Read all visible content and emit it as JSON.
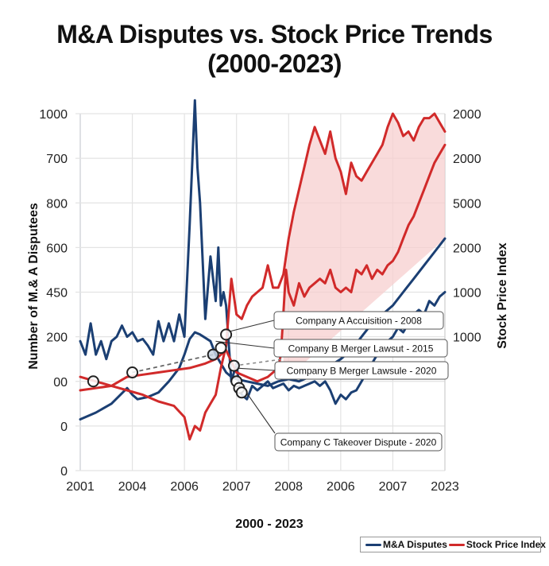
{
  "chart_data": {
    "type": "line",
    "title": "M&A Disputes vs. Stock Price Trends (2000-2023)",
    "title_lines": [
      "M&A Disputes vs. Stock Price Trends",
      "(2000-2023)"
    ],
    "xlabel": "2000 - 2023",
    "ylabel_left": "Number of M.& A Disputees",
    "ylabel_right": "Stock Price Index",
    "x_ticks": [
      "2001",
      "2004",
      "2006",
      "2007",
      "2008",
      "2006",
      "2007",
      "2023"
    ],
    "y_left_ticks": [
      "1000",
      "700",
      "800",
      "600",
      "450",
      "200",
      "00",
      "0",
      "0"
    ],
    "y_right_ticks": [
      "2000",
      "2000",
      "5000",
      "2000",
      "1000",
      "1000"
    ],
    "grid": true,
    "legend_position": "bottom-right",
    "x_range": [
      0,
      7
    ],
    "y_range": [
      0,
      8
    ],
    "fill_area": {
      "series": "Stock Price Index",
      "from_x": 3.9,
      "color": "#f5c6c6"
    },
    "series": [
      {
        "name": "M&A Disputes",
        "role": "upper",
        "color": "#1b3f73",
        "x": [
          0,
          0.1,
          0.2,
          0.3,
          0.4,
          0.5,
          0.6,
          0.7,
          0.8,
          0.9,
          1.0,
          1.1,
          1.2,
          1.3,
          1.4,
          1.5,
          1.6,
          1.7,
          1.8,
          1.9,
          2.0,
          2.1,
          2.2,
          2.25,
          2.3,
          2.4,
          2.5,
          2.6,
          2.65,
          2.7,
          2.75,
          2.8,
          2.9,
          3.0,
          3.05,
          3.1,
          3.2,
          3.3,
          3.4,
          3.5,
          3.6,
          3.7,
          3.8,
          3.9,
          4.0,
          4.1,
          4.2,
          4.3,
          4.4,
          4.5,
          4.6,
          4.7,
          4.8,
          4.9,
          5.0,
          5.1,
          5.2,
          5.3,
          5.4,
          5.5,
          5.6,
          5.7,
          5.8,
          5.9,
          6.0,
          6.1,
          6.2,
          6.3,
          6.4,
          6.5,
          6.6,
          6.7,
          6.8,
          6.9,
          7.0
        ],
        "y": [
          2.9,
          2.6,
          3.3,
          2.6,
          2.9,
          2.5,
          2.9,
          3.0,
          3.25,
          3.0,
          3.1,
          2.9,
          2.95,
          2.8,
          2.6,
          3.35,
          2.9,
          3.3,
          2.9,
          3.5,
          3.0,
          5.5,
          8.3,
          6.8,
          6.0,
          3.4,
          4.8,
          3.8,
          5.0,
          3.7,
          4.0,
          3.7,
          2.0,
          2.4,
          1.9,
          1.7,
          1.6,
          1.9,
          1.8,
          1.9,
          2.0,
          1.85,
          1.9,
          1.95,
          1.8,
          1.9,
          1.85,
          1.9,
          1.95,
          2.0,
          1.9,
          2.0,
          1.8,
          1.5,
          1.7,
          1.6,
          1.75,
          1.8,
          2.0,
          2.2,
          2.4,
          2.6,
          2.8,
          2.9,
          3.0,
          3.2,
          3.1,
          3.3,
          3.5,
          3.6,
          3.5,
          3.8,
          3.7,
          3.9,
          4.0
        ],
        "values_note": "traced from plotted line; y in gridline units (0 = bottom '0' tick, 8 = top '1000' tick)"
      },
      {
        "name": "M&A Disputes",
        "role": "lower",
        "color": "#1b3f73",
        "x": [
          0,
          0.3,
          0.6,
          0.9,
          1.0,
          1.1,
          1.3,
          1.5,
          1.7,
          1.9,
          2.0,
          2.1,
          2.2,
          2.3,
          2.5,
          2.6,
          2.7,
          2.8,
          2.9,
          3.0,
          3.2,
          3.4,
          3.6,
          3.8,
          4.0,
          4.2,
          4.4,
          4.6,
          4.8,
          5.0,
          5.2,
          5.4,
          5.6,
          5.8,
          6.0,
          6.2,
          6.4,
          6.6,
          6.8,
          7.0
        ],
        "y": [
          1.15,
          1.3,
          1.5,
          1.85,
          1.7,
          1.6,
          1.65,
          1.75,
          2.0,
          2.3,
          2.6,
          2.95,
          3.1,
          3.05,
          2.9,
          2.6,
          2.4,
          2.2,
          2.1,
          2.05,
          2.0,
          1.95,
          1.9,
          2.0,
          2.05,
          2.0,
          2.1,
          2.2,
          2.35,
          2.5,
          2.7,
          3.0,
          3.3,
          3.5,
          3.7,
          4.0,
          4.3,
          4.6,
          4.9,
          5.2
        ]
      },
      {
        "name": "Stock Price Index",
        "role": "upper",
        "color": "#d12a2a",
        "x": [
          0,
          0.3,
          0.6,
          0.9,
          1.2,
          1.5,
          1.8,
          2.1,
          2.4,
          2.6,
          2.8,
          3.0,
          3.2,
          3.4,
          3.6,
          3.8,
          3.85,
          3.95,
          4.0,
          4.1,
          4.2,
          4.3,
          4.4,
          4.5,
          4.6,
          4.7,
          4.8,
          4.9,
          5.0,
          5.1,
          5.2,
          5.3,
          5.4,
          5.5,
          5.6,
          5.7,
          5.8,
          5.9,
          6.0,
          6.1,
          6.2,
          6.3,
          6.4,
          6.5,
          6.6,
          6.7,
          6.8,
          6.9,
          7.0
        ],
        "y": [
          1.8,
          1.85,
          1.9,
          2.1,
          2.15,
          2.2,
          2.25,
          2.3,
          2.4,
          2.5,
          2.7,
          2.2,
          2.1,
          2.0,
          2.1,
          2.3,
          2.6,
          4.5,
          4.0,
          3.7,
          4.2,
          3.9,
          4.1,
          4.2,
          4.3,
          4.2,
          4.5,
          4.1,
          4.0,
          4.1,
          4.0,
          4.5,
          4.4,
          4.6,
          4.3,
          4.5,
          4.4,
          4.6,
          4.7,
          4.9,
          5.2,
          5.5,
          5.7,
          6.0,
          6.3,
          6.6,
          6.9,
          7.1,
          7.3
        ],
        "values_note": "includes annotation-connected trend line"
      },
      {
        "name": "Stock Price Index",
        "role": "lower",
        "color": "#d12a2a",
        "x": [
          0,
          0.3,
          0.6,
          0.9,
          1.2,
          1.5,
          1.8,
          2.0,
          2.1,
          2.2,
          2.3,
          2.4,
          2.5,
          2.6,
          2.7,
          2.8,
          2.9,
          3.0,
          3.1,
          3.2,
          3.3,
          3.4,
          3.5,
          3.6,
          3.7,
          3.8,
          3.9,
          4.0,
          4.1,
          4.2,
          4.3,
          4.4,
          4.5,
          4.6,
          4.7,
          4.8,
          4.9,
          5.0,
          5.1,
          5.2,
          5.3,
          5.4,
          5.5,
          5.6,
          5.7,
          5.8,
          5.9,
          6.0,
          6.1,
          6.2,
          6.3,
          6.4,
          6.5,
          6.6,
          6.7,
          6.8,
          6.9,
          7.0
        ],
        "y": [
          2.1,
          2.0,
          1.9,
          1.8,
          1.7,
          1.55,
          1.45,
          1.2,
          0.7,
          1.0,
          0.9,
          1.3,
          1.5,
          1.7,
          2.3,
          2.8,
          4.3,
          3.5,
          3.4,
          3.7,
          3.9,
          4.0,
          4.1,
          4.6,
          4.1,
          4.1,
          4.4,
          5.2,
          5.8,
          6.3,
          6.8,
          7.3,
          7.7,
          7.4,
          7.1,
          7.6,
          7.0,
          6.7,
          6.2,
          6.9,
          6.6,
          6.5,
          6.7,
          6.9,
          7.1,
          7.3,
          7.7,
          8.0,
          7.8,
          7.5,
          7.6,
          7.4,
          7.7,
          7.9,
          7.9,
          8.0,
          7.8,
          7.6
        ]
      }
    ],
    "annotations": [
      {
        "label": "Company A Accuisition - 2008",
        "x": 2.8,
        "y": 3.1
      },
      {
        "label": "Company B Merger Lawsut - 2015",
        "x": 2.6,
        "y": 2.9
      },
      {
        "label": "Company B Merger Lawsule - 2020",
        "x": 2.95,
        "y": 2.3
      },
      {
        "label": "Company C Takeover Dispute - 2020",
        "x": 3.1,
        "y": 1.9
      }
    ],
    "markers": [
      {
        "x": 0.25,
        "y": 2.0
      },
      {
        "x": 1.0,
        "y": 2.2
      },
      {
        "x": 2.55,
        "y": 2.6
      },
      {
        "x": 2.7,
        "y": 2.75
      },
      {
        "x": 2.8,
        "y": 3.05
      },
      {
        "x": 2.95,
        "y": 2.35
      },
      {
        "x": 3.0,
        "y": 2.0
      },
      {
        "x": 3.05,
        "y": 1.85
      },
      {
        "x": 3.1,
        "y": 1.75
      }
    ]
  },
  "legend": {
    "items": [
      {
        "label": "M&A Disputes",
        "color": "#1b3f73"
      },
      {
        "label": "Stock Price Index",
        "color": "#d12a2a"
      }
    ]
  }
}
